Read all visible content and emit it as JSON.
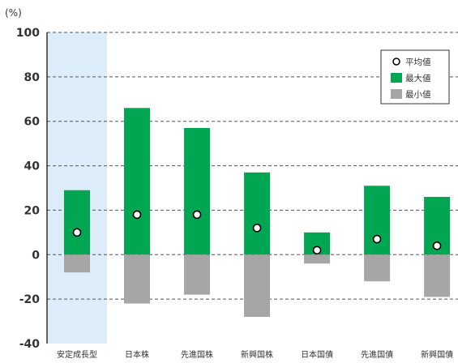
{
  "chart_data": {
    "type": "bar",
    "unit_label": "(%)",
    "categories": [
      "安定成長型",
      "日本株",
      "先進国株",
      "新興国株",
      "日本国債",
      "先進国債",
      "新興国債"
    ],
    "highlight_category_index": 0,
    "highlight_color": "#dcecf8",
    "series": [
      {
        "name": "最大値",
        "values": [
          29,
          66,
          57,
          37,
          10,
          31,
          26
        ],
        "color": "#00a651"
      },
      {
        "name": "最小値",
        "values": [
          -8,
          -22,
          -18,
          -28,
          -4,
          -12,
          -19
        ],
        "color": "#a6a6a6"
      },
      {
        "name": "平均値",
        "values": [
          10,
          18,
          18,
          12,
          2,
          7,
          4
        ],
        "marker": "circle"
      }
    ],
    "yticks": [
      100,
      80,
      60,
      40,
      20,
      0,
      -20,
      -40
    ],
    "ylim": [
      -40,
      100
    ],
    "grid": true,
    "legend_position": "top-right"
  }
}
